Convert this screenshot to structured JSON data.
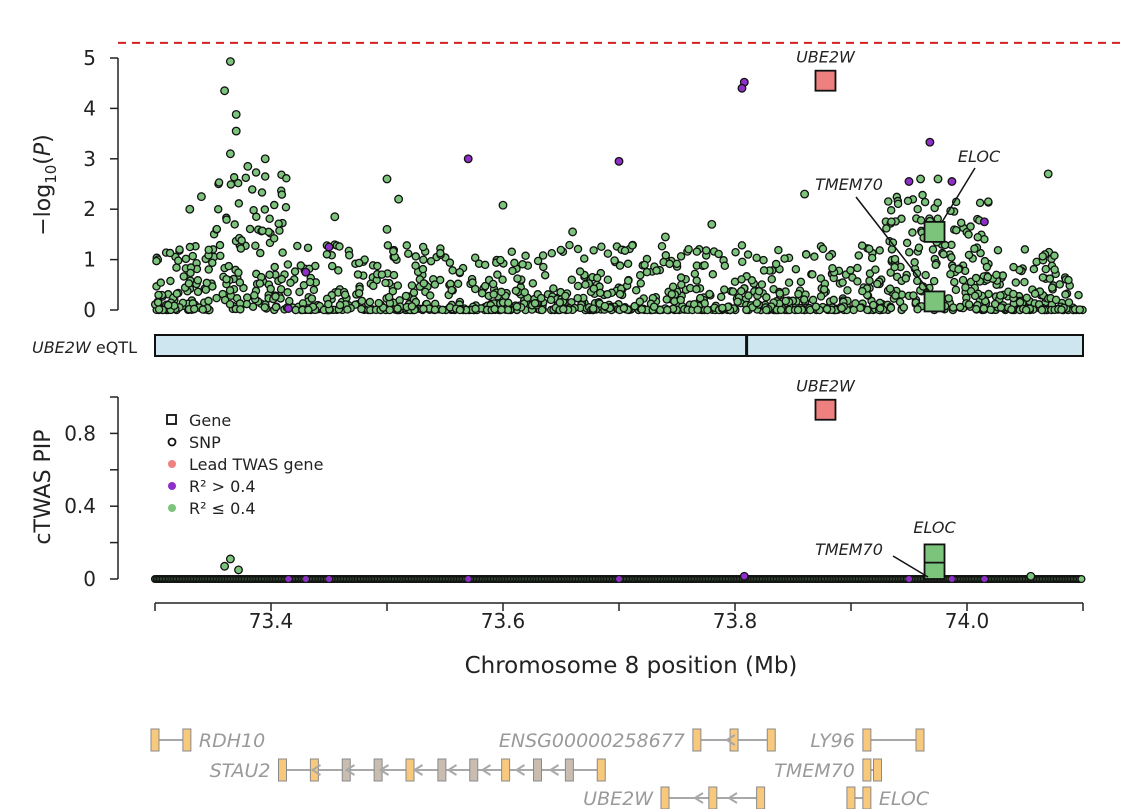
{
  "chart_data": [
    {
      "type": "scatter",
      "panel": "gwas",
      "ylabel": "-log10(P)",
      "yticks": [
        "0",
        "1",
        "2",
        "3",
        "4",
        "5"
      ],
      "ylim": [
        0,
        5.2
      ],
      "xlim": [
        73.3,
        74.1
      ],
      "threshold_line": 5.3,
      "genes": [
        {
          "name": "UBE2W",
          "x": 73.878,
          "y": 4.55,
          "group": "lead"
        },
        {
          "name": "ELOC",
          "x": 73.972,
          "y": 1.55,
          "group": "low"
        },
        {
          "name": "TMEM70",
          "x": 73.972,
          "y": 0.17,
          "group": "low"
        }
      ],
      "highlight_snps": [
        {
          "x": 73.808,
          "y": 4.52,
          "group": "high"
        },
        {
          "x": 73.806,
          "y": 4.4,
          "group": "high"
        },
        {
          "x": 73.57,
          "y": 3.0,
          "group": "high"
        },
        {
          "x": 73.7,
          "y": 2.95,
          "group": "high"
        },
        {
          "x": 73.968,
          "y": 3.33,
          "group": "high"
        },
        {
          "x": 73.987,
          "y": 2.55,
          "group": "high"
        },
        {
          "x": 73.95,
          "y": 2.55,
          "group": "high"
        },
        {
          "x": 73.45,
          "y": 1.25,
          "group": "high"
        },
        {
          "x": 74.015,
          "y": 1.75,
          "group": "high"
        },
        {
          "x": 73.43,
          "y": 0.75,
          "group": "high"
        },
        {
          "x": 73.415,
          "y": 0.03,
          "group": "high"
        },
        {
          "x": 73.365,
          "y": 4.93,
          "group": "low"
        },
        {
          "x": 73.36,
          "y": 4.35,
          "group": "low"
        },
        {
          "x": 73.37,
          "y": 3.88,
          "group": "low"
        },
        {
          "x": 73.37,
          "y": 3.55,
          "group": "low"
        },
        {
          "x": 73.365,
          "y": 3.1,
          "group": "low"
        },
        {
          "x": 73.38,
          "y": 2.85,
          "group": "low"
        },
        {
          "x": 73.395,
          "y": 3.0,
          "group": "low"
        },
        {
          "x": 73.5,
          "y": 2.6,
          "group": "low"
        },
        {
          "x": 73.51,
          "y": 2.2,
          "group": "low"
        },
        {
          "x": 73.6,
          "y": 2.08,
          "group": "low"
        },
        {
          "x": 73.33,
          "y": 2.0,
          "group": "low"
        },
        {
          "x": 73.34,
          "y": 2.25,
          "group": "low"
        },
        {
          "x": 74.07,
          "y": 2.7,
          "group": "low"
        },
        {
          "x": 73.96,
          "y": 2.6,
          "group": "low"
        },
        {
          "x": 73.975,
          "y": 2.6,
          "group": "low"
        },
        {
          "x": 73.86,
          "y": 2.3,
          "group": "low"
        },
        {
          "x": 73.78,
          "y": 1.7,
          "group": "low"
        },
        {
          "x": 73.66,
          "y": 1.55,
          "group": "low"
        },
        {
          "x": 73.74,
          "y": 1.45,
          "group": "low"
        },
        {
          "x": 73.5,
          "y": 1.6,
          "group": "low"
        },
        {
          "x": 73.455,
          "y": 1.85,
          "group": "low"
        }
      ]
    },
    {
      "type": "bar",
      "panel": "eqtl-track",
      "label": "UBE2W eQTL",
      "xlim": [
        73.3,
        74.1
      ],
      "marker_x": 73.81
    },
    {
      "type": "scatter",
      "panel": "pip",
      "ylabel": "cTWAS PIP",
      "yticks": [
        "0",
        "0.4",
        "0.8"
      ],
      "ylim": [
        0,
        1.0
      ],
      "xlim": [
        73.3,
        74.1
      ],
      "xlabel": "Chromosome 8 position (Mb)",
      "xticks": [
        "73.4",
        "73.6",
        "73.8",
        "74.0"
      ],
      "legend": [
        {
          "label": "Gene",
          "marker": "square"
        },
        {
          "label": "SNP",
          "marker": "circle"
        },
        {
          "label": "Lead TWAS gene",
          "color": "#ef8080"
        },
        {
          "label": "R² > 0.4",
          "color": "#8e30c8"
        },
        {
          "label": "R² ≤ 0.4",
          "color": "#7cc47c"
        }
      ],
      "genes": [
        {
          "name": "UBE2W",
          "x": 73.878,
          "y": 0.93,
          "group": "lead"
        },
        {
          "name": "ELOC",
          "x": 73.972,
          "y": 0.15,
          "group": "low"
        },
        {
          "name": "TMEM70",
          "x": 73.972,
          "y": 0.05,
          "group": "low"
        }
      ],
      "highlight_snps": [
        {
          "x": 73.365,
          "y": 0.11,
          "group": "low"
        },
        {
          "x": 73.36,
          "y": 0.07,
          "group": "low"
        },
        {
          "x": 73.372,
          "y": 0.05,
          "group": "low"
        },
        {
          "x": 73.808,
          "y": 0.015,
          "group": "high"
        },
        {
          "x": 74.055,
          "y": 0.015,
          "group": "low"
        }
      ]
    },
    {
      "type": "table",
      "panel": "gene-track",
      "genes": [
        {
          "name": "RDH10",
          "label_side": "right",
          "row": 0,
          "start": 73.3,
          "end": 73.33
        },
        {
          "name": "ENSG00000258677",
          "label_side": "left",
          "row": 0,
          "start": 73.81,
          "end": 73.88
        },
        {
          "name": "LY96",
          "label_side": "left",
          "row": 0,
          "start": 73.97,
          "end": 74.02
        },
        {
          "name": "STAU2",
          "label_side": "left",
          "row": 1,
          "start": 73.42,
          "end": 73.72
        },
        {
          "name": "TMEM70",
          "label_side": "left",
          "row": 1,
          "start": 73.97,
          "end": 73.98
        },
        {
          "name": "UBE2W",
          "label_side": "left",
          "row": 2,
          "start": 73.78,
          "end": 73.87
        },
        {
          "name": "ELOC",
          "label_side": "right",
          "row": 2,
          "start": 73.955,
          "end": 73.97
        }
      ]
    }
  ],
  "colors": {
    "lead": "#ef8080",
    "high": "#8e30c8",
    "low": "#7cc47c",
    "eqtl": "#cde6ef",
    "threshold": "#d42020",
    "gene_track": "#a8a8a8",
    "exon_orange": "#f8c87c",
    "exon_grey": "#c8bdb0"
  }
}
